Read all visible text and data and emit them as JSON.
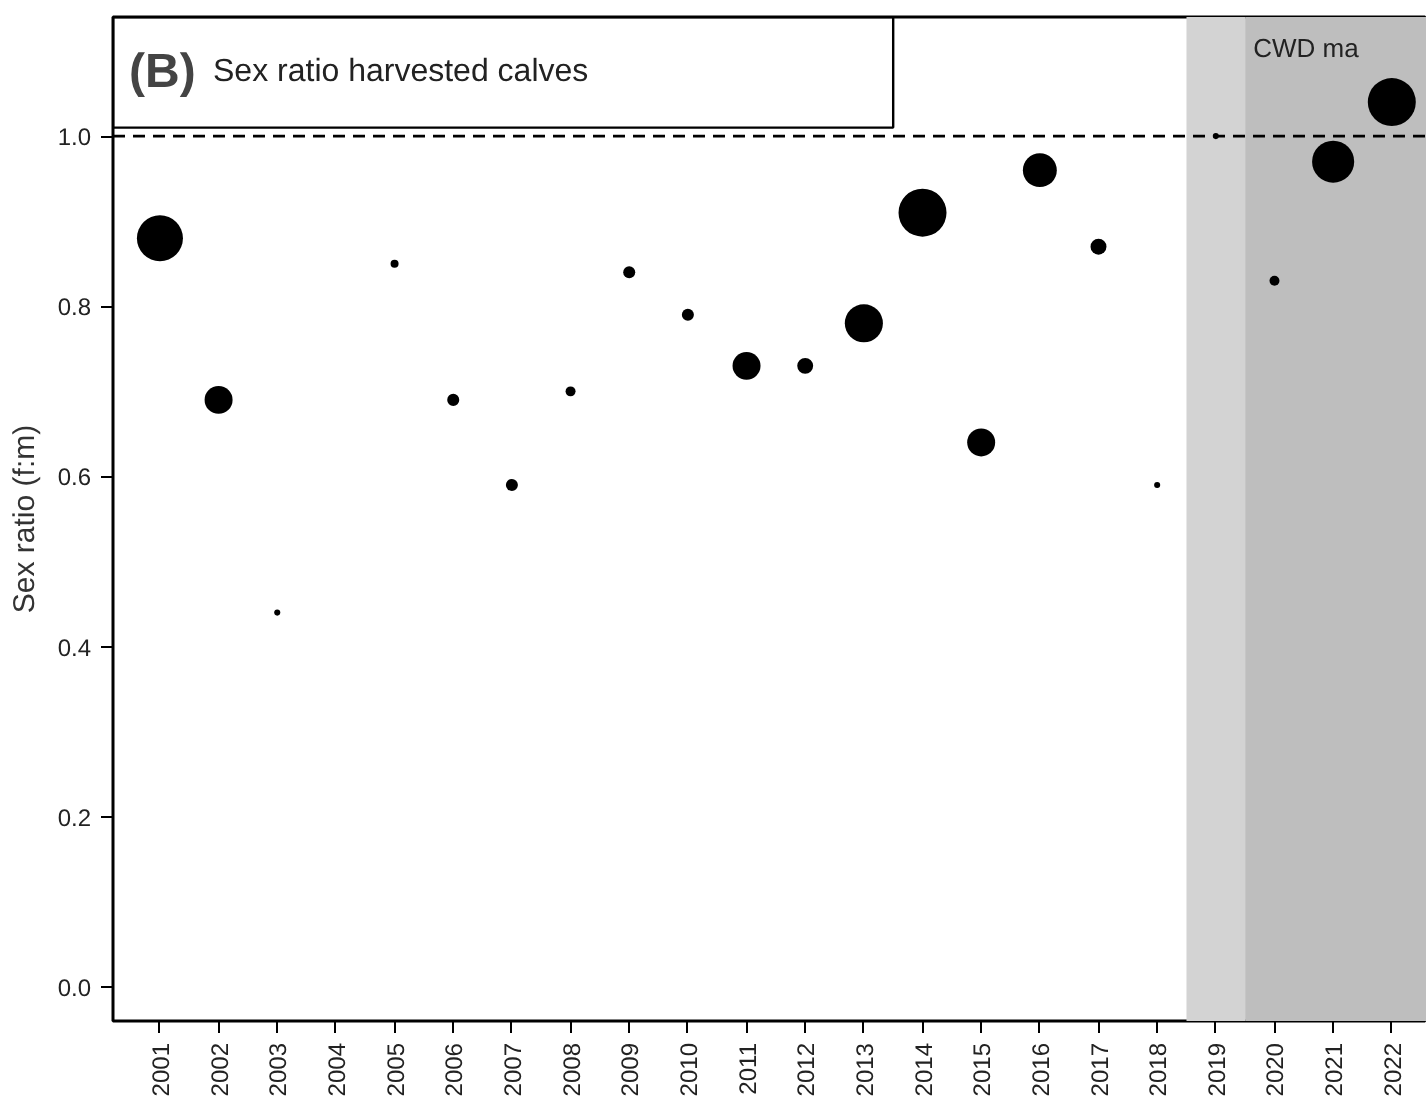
{
  "chart_data": {
    "type": "bubble",
    "title": "(B) Sex ratio harvested calves",
    "ylabel": "Sex ratio (f:m)",
    "x": [
      2001,
      2002,
      2003,
      2004,
      2005,
      2006,
      2007,
      2008,
      2009,
      2010,
      2011,
      2012,
      2013,
      2014,
      2015,
      2016,
      2017,
      2018,
      2019,
      2020,
      2021,
      2022
    ],
    "values": [
      0.88,
      0.69,
      0.44,
      null,
      0.85,
      0.69,
      0.59,
      0.7,
      0.84,
      0.79,
      0.73,
      0.73,
      0.78,
      0.91,
      0.64,
      0.96,
      0.87,
      0.59,
      1.0,
      0.83,
      0.97,
      1.04
    ],
    "sizes": [
      0.92,
      0.34,
      0.016,
      null,
      0.028,
      0.063,
      0.063,
      0.043,
      0.063,
      0.063,
      0.34,
      0.11,
      0.63,
      1,
      0.34,
      0.5,
      0.11,
      0.016,
      0.016,
      0.043,
      0.77,
      1
    ],
    "color": "#000000",
    "marker": "circle",
    "xlim": [
      2000.2,
      2022.6
    ],
    "xticks": [
      2001,
      2002,
      2003,
      2004,
      2005,
      2006,
      2007,
      2008,
      2009,
      2010,
      2011,
      2012,
      2013,
      2014,
      2015,
      2016,
      2017,
      2018,
      2019,
      2020,
      2021,
      2022
    ],
    "ylim": [
      -0.04,
      1.14
    ],
    "yticks": [
      {
        "value": 0,
        "label": "0.0"
      },
      {
        "value": 0.2,
        "label": "0.2"
      },
      {
        "value": 0.4,
        "label": "0.4"
      },
      {
        "value": 0.6,
        "label": "0.6"
      },
      {
        "value": 0.8,
        "label": "0.8"
      },
      {
        "value": 1,
        "label": "1.0"
      }
    ],
    "ref_lines": [
      {
        "axis": "y",
        "value": 1,
        "line_style": "dashed",
        "color": "#000000"
      }
    ],
    "bands": [
      {
        "axis": "x",
        "from": 2018.5,
        "to": 2019.5,
        "color": "#d3d3d3"
      },
      {
        "axis": "x",
        "from": 2019.5,
        "to": 2022.6,
        "color": "#bebebe",
        "label": "CWD ma"
      }
    ],
    "grid": false
  }
}
